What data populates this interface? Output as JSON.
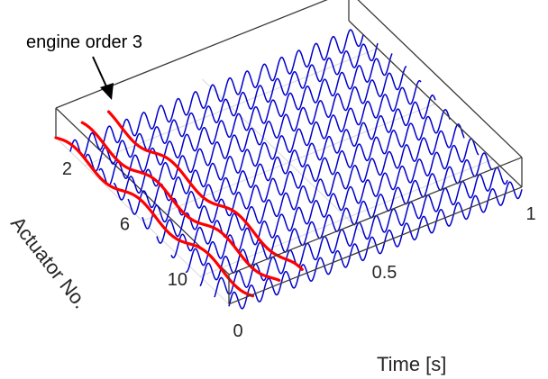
{
  "chart_data": {
    "type": "waterfall-3d-line",
    "title": "",
    "annotation": "engine order 3",
    "x_axis": {
      "label": "Time [s]",
      "range": [
        0,
        1
      ],
      "ticks": [
        {
          "value": 0,
          "label": "0"
        },
        {
          "value": 0.5,
          "label": "0.5"
        },
        {
          "value": 1,
          "label": "1"
        }
      ]
    },
    "y_axis": {
      "label": "Actuator No.",
      "range": [
        0,
        12
      ],
      "ticks": [
        {
          "value": 2,
          "label": "2"
        },
        {
          "value": 6,
          "label": "6"
        },
        {
          "value": 10,
          "label": "10"
        }
      ]
    },
    "actuators": [
      1,
      2,
      3,
      4,
      5,
      6,
      7,
      8,
      9,
      10,
      11,
      12
    ],
    "wave_cycles_per_second": 17,
    "highlight_interval": [
      0,
      0.25
    ],
    "grid": true,
    "colors": {
      "wave": "#0000cc",
      "highlight": "#ff0000",
      "box": "#3a3a3a",
      "grid": "#d9d9d9",
      "text": "#262626"
    }
  }
}
